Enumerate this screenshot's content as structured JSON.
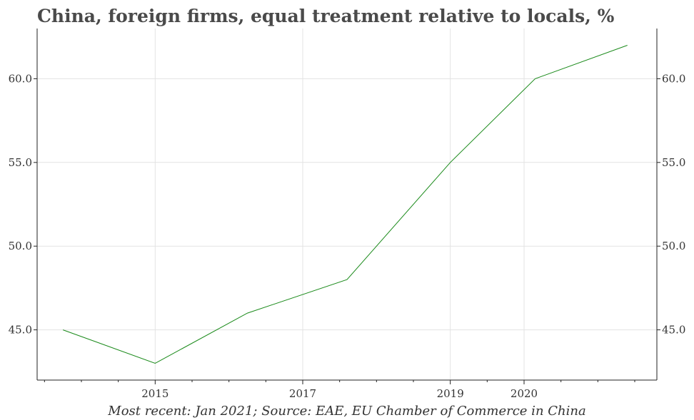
{
  "chart_data": {
    "type": "line",
    "title": "China, foreign firms, equal treatment relative to locals, %",
    "source": "Most recent: Jan 2021; Source: EAE, EU Chamber of Commerce in China",
    "xlabel": "",
    "ylabel": "",
    "x_ticks": [
      2015,
      2017,
      2019,
      2020
    ],
    "x_tick_labels": [
      "2015",
      "2017",
      "2019",
      "2020"
    ],
    "y_ticks": [
      45,
      50,
      55,
      60
    ],
    "y_tick_labels": [
      "45.0",
      "50.0",
      "55.0",
      "60.0"
    ],
    "ylim": [
      42.0,
      63.0
    ],
    "xlim": [
      2013.4,
      2021.8
    ],
    "grid": true,
    "series": [
      {
        "color": "#1a8a1a",
        "points": [
          {
            "x": 2013.75,
            "y": 45
          },
          {
            "x": 2015.0,
            "y": 43
          },
          {
            "x": 2016.25,
            "y": 46
          },
          {
            "x": 2017.6,
            "y": 48
          },
          {
            "x": 2019.0,
            "y": 55
          },
          {
            "x": 2020.15,
            "y": 60
          },
          {
            "x": 2021.4,
            "y": 62
          }
        ]
      }
    ]
  }
}
